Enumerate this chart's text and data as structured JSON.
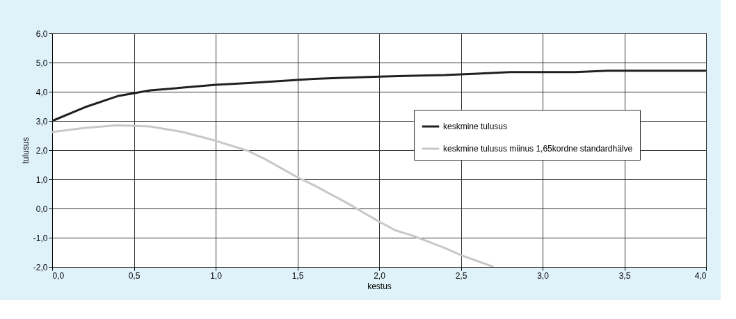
{
  "chart_data": {
    "type": "line",
    "xlabel": "kestus",
    "ylabel": "tulusus",
    "xlim": [
      0,
      4
    ],
    "ylim": [
      -2,
      6
    ],
    "xticks": [
      {
        "value": 0,
        "label": "0,0"
      },
      {
        "value": 0.5,
        "label": "0,5"
      },
      {
        "value": 1,
        "label": "1,0"
      },
      {
        "value": 1.5,
        "label": "1,5"
      },
      {
        "value": 2,
        "label": "2,0"
      },
      {
        "value": 2.5,
        "label": "2,5"
      },
      {
        "value": 3,
        "label": "3,0"
      },
      {
        "value": 3.5,
        "label": "3,5"
      },
      {
        "value": 4,
        "label": "4,0"
      }
    ],
    "yticks": [
      {
        "value": -2,
        "label": "-2,0"
      },
      {
        "value": -1,
        "label": "-1,0"
      },
      {
        "value": 0,
        "label": "0,0"
      },
      {
        "value": 1,
        "label": "1,0"
      },
      {
        "value": 2,
        "label": "2,0"
      },
      {
        "value": 3,
        "label": "3,0"
      },
      {
        "value": 4,
        "label": "4,0"
      },
      {
        "value": 5,
        "label": "5,0"
      },
      {
        "value": 6,
        "label": "6,0"
      }
    ],
    "grid": true,
    "legend": "right",
    "line_style": "solid",
    "marker": "none",
    "series": [
      {
        "name": "keskmine tulusus",
        "color": "#231f20",
        "x": [
          0,
          0.2,
          0.4,
          0.6,
          0.8,
          1.0,
          1.2,
          1.4,
          1.6,
          1.8,
          2.0,
          2.2,
          2.4,
          2.6,
          2.8,
          3.0,
          3.2,
          3.4,
          3.6,
          3.8,
          4.0
        ],
        "values": [
          3.0,
          3.47,
          3.85,
          4.05,
          4.14,
          4.24,
          4.3,
          4.37,
          4.44,
          4.48,
          4.52,
          4.55,
          4.57,
          4.62,
          4.67,
          4.67,
          4.67,
          4.72,
          4.72,
          4.72,
          4.72
        ]
      },
      {
        "name": "keskmine tulusus miinus 1,65kordne standardhälve",
        "color": "#c8c8c8",
        "x": [
          0,
          0.2,
          0.4,
          0.6,
          0.8,
          1.0,
          1.2,
          1.3,
          1.5,
          1.6,
          1.8,
          2.0,
          2.1,
          2.2,
          2.4,
          2.5,
          2.7
        ],
        "values": [
          2.62,
          2.76,
          2.85,
          2.81,
          2.62,
          2.32,
          1.97,
          1.7,
          1.07,
          0.8,
          0.2,
          -0.45,
          -0.75,
          -0.92,
          -1.35,
          -1.6,
          -2.0
        ]
      }
    ]
  }
}
